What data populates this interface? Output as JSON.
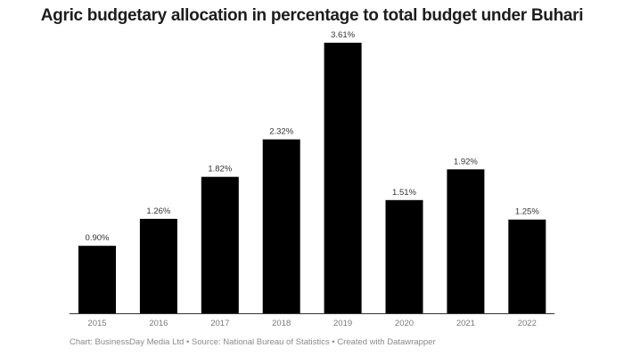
{
  "chart_data": {
    "type": "bar",
    "title": "Agric budgetary allocation in percentage to total budget under Buhari",
    "categories": [
      "2015",
      "2016",
      "2017",
      "2018",
      "2019",
      "2020",
      "2021",
      "2022"
    ],
    "values": [
      0.9,
      1.26,
      1.82,
      2.32,
      3.61,
      1.51,
      1.92,
      1.25
    ],
    "value_labels": [
      "0.90%",
      "1.26%",
      "1.82%",
      "2.32%",
      "3.61%",
      "1.51%",
      "1.92%",
      "1.25%"
    ],
    "xlabel": "",
    "ylabel": "",
    "ylim": [
      0,
      3.61
    ],
    "grid": false,
    "legend": "none",
    "bar_color": "#000000",
    "unit": "%"
  },
  "footer": "Chart: BusinessDay Media Ltd • Source: National Bureau of Statistics • Created with Datawrapper"
}
